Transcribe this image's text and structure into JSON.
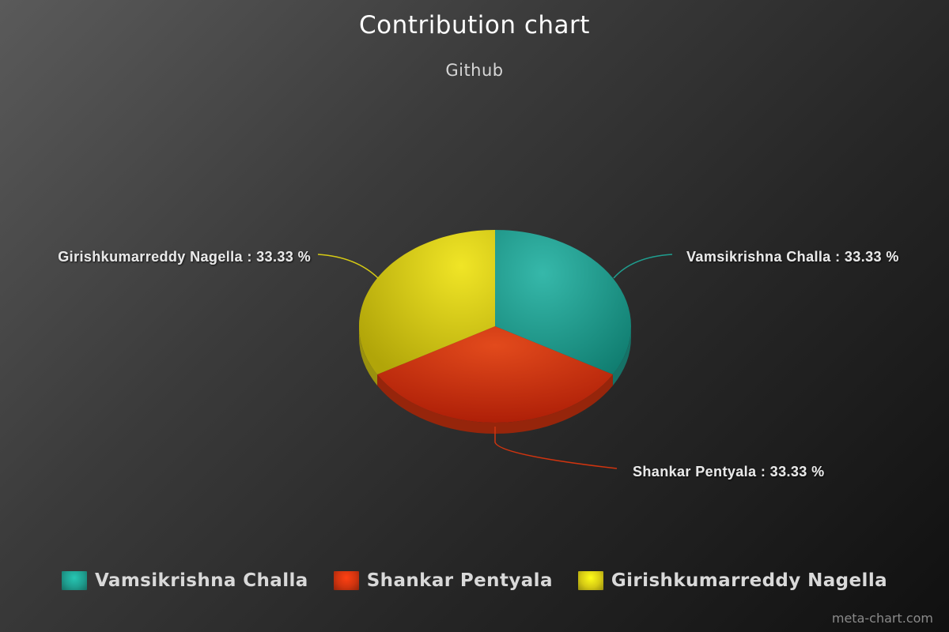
{
  "chart_data": {
    "type": "pie",
    "title": "Contribution chart",
    "subtitle": "Github",
    "categories": [
      "Vamsikrishna Challa",
      "Shankar Pentyala",
      "Girishkumarreddy Nagella"
    ],
    "values": [
      33.33,
      33.33,
      33.33
    ],
    "data_labels": [
      "Vamsikrishna Challa : 33.33 %",
      "Shankar Pentyala : 33.33 %",
      "Girishkumarreddy Nagella : 33.33 %"
    ],
    "colors": [
      "#1f9e8f",
      "#d0340f",
      "#d6ca14"
    ],
    "legend_placement": "bottom-center",
    "three_d": true
  },
  "credit": "meta-chart.com"
}
